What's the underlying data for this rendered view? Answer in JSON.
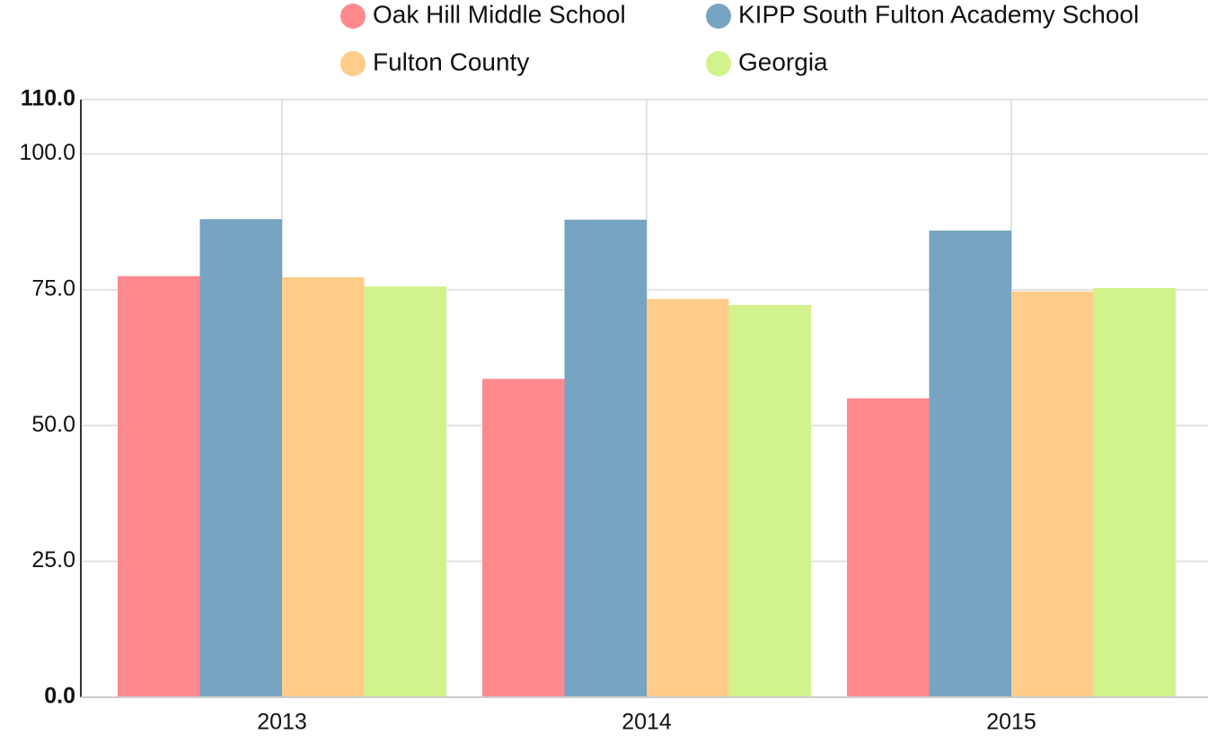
{
  "chart_data": {
    "type": "bar",
    "categories": [
      "2013",
      "2014",
      "2015"
    ],
    "series": [
      {
        "name": "Oak Hill Middle School",
        "color": "#ff8a8e",
        "values": [
          77.5,
          58.6,
          55.0
        ]
      },
      {
        "name": "KIPP South Fulton Academy School",
        "color": "#77a4c3",
        "values": [
          88.0,
          87.9,
          85.9
        ]
      },
      {
        "name": "Fulton County",
        "color": "#ffcc8a",
        "values": [
          77.3,
          73.3,
          74.7
        ]
      },
      {
        "name": "Georgia",
        "color": "#d2f28c",
        "values": [
          75.6,
          72.2,
          75.3
        ]
      }
    ],
    "ylim": [
      0,
      110
    ],
    "yticks": [
      {
        "value": 0,
        "label": "0.0"
      },
      {
        "value": 25,
        "label": "25.0"
      },
      {
        "value": 50,
        "label": "50.0"
      },
      {
        "value": 75,
        "label": "75.0"
      },
      {
        "value": 100,
        "label": "100.0"
      },
      {
        "value": 110,
        "label": "110.0"
      }
    ],
    "grid": true,
    "legend": "top"
  }
}
